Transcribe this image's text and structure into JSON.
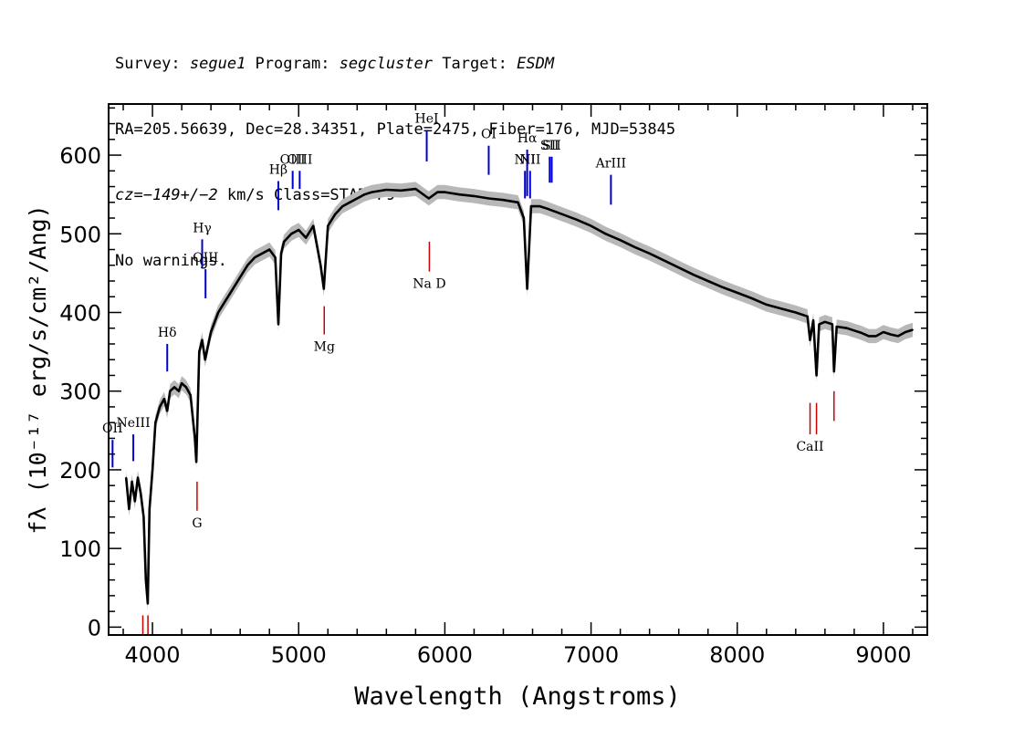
{
  "header": {
    "survey_label": "Survey: ",
    "survey": "segue1",
    "program_label": " Program: ",
    "program": "segcluster",
    "target_label": " Target: ",
    "target": "ESDM",
    "line2": "RA=205.56639, Dec=28.34351, Plate=2475, Fiber=176, MJD=53845",
    "cz_label": "cz=",
    "cz_value": "−149+/−2",
    "cz_rest": " km/s Class=STAR F9",
    "line4": "No warnings."
  },
  "colors": {
    "spectrum": "#000000",
    "error_band": "#b8b8b8",
    "emission_lines": "#0000cc",
    "absorption_lines": "#cc0000",
    "axes": "#000000"
  },
  "chart_data": {
    "type": "line",
    "title": "",
    "xlabel": "Wavelength (Angstroms)",
    "ylabel": "fλ (10⁻¹⁷ erg/s/cm²/Ang)",
    "xlim": [
      3700,
      9300
    ],
    "ylim": [
      -10,
      665
    ],
    "x_ticks": [
      4000,
      5000,
      6000,
      7000,
      8000,
      9000
    ],
    "y_ticks": [
      0,
      100,
      200,
      300,
      400,
      500,
      600
    ],
    "x_minor_step": 200,
    "y_minor_step": 20,
    "grid": false,
    "series": [
      {
        "x": [
          3820,
          3840,
          3860,
          3880,
          3900,
          3920,
          3940,
          3955,
          3968,
          3980,
          4000,
          4020,
          4050,
          4080,
          4101,
          4120,
          4150,
          4180,
          4200,
          4230,
          4260,
          4290,
          4300,
          4320,
          4340,
          4360,
          4400,
          4450,
          4500,
          4550,
          4600,
          4650,
          4700,
          4750,
          4800,
          4840,
          4861,
          4880,
          4900,
          4950,
          5000,
          5050,
          5100,
          5150,
          5172,
          5200,
          5250,
          5300,
          5350,
          5400,
          5450,
          5500,
          5600,
          5700,
          5800,
          5890,
          5950,
          6000,
          6100,
          6200,
          6300,
          6400,
          6500,
          6540,
          6563,
          6590,
          6650,
          6700,
          6800,
          6900,
          7000,
          7100,
          7200,
          7300,
          7400,
          7500,
          7600,
          7700,
          7800,
          7900,
          8000,
          8100,
          8200,
          8300,
          8400,
          8480,
          8498,
          8520,
          8542,
          8560,
          8600,
          8650,
          8662,
          8680,
          8750,
          8800,
          8850,
          8900,
          8950,
          9000,
          9050,
          9100,
          9150,
          9200
        ],
        "values": [
          190,
          150,
          185,
          160,
          190,
          170,
          140,
          60,
          30,
          150,
          200,
          260,
          280,
          290,
          275,
          300,
          305,
          300,
          310,
          305,
          295,
          240,
          210,
          350,
          365,
          340,
          375,
          400,
          415,
          430,
          445,
          460,
          470,
          475,
          480,
          470,
          385,
          475,
          490,
          500,
          505,
          495,
          510,
          460,
          430,
          510,
          525,
          535,
          540,
          545,
          550,
          553,
          556,
          555,
          557,
          545,
          553,
          553,
          550,
          548,
          545,
          543,
          540,
          520,
          430,
          535,
          535,
          532,
          525,
          518,
          510,
          500,
          492,
          483,
          475,
          466,
          457,
          448,
          440,
          432,
          425,
          418,
          410,
          405,
          400,
          395,
          365,
          390,
          320,
          385,
          388,
          385,
          325,
          382,
          380,
          377,
          374,
          370,
          370,
          375,
          372,
          370,
          375,
          378
        ],
        "error": 9
      }
    ],
    "line_markers": [
      {
        "label": "OII",
        "wavelength": 3727,
        "y0": 203,
        "y1": 238,
        "kind": "emission"
      },
      {
        "label": "NeIII",
        "wavelength": 3869,
        "y0": 211,
        "y1": 245,
        "kind": "emission"
      },
      {
        "label": "Hδ",
        "wavelength": 4101,
        "y0": 325,
        "y1": 360,
        "kind": "emission"
      },
      {
        "label": "Hγ",
        "wavelength": 4340,
        "y0": 457,
        "y1": 493,
        "kind": "emission"
      },
      {
        "label": "OIII",
        "wavelength": 4363,
        "y0": 418,
        "y1": 455,
        "kind": "emission"
      },
      {
        "label": "Hβ",
        "wavelength": 4861,
        "y0": 530,
        "y1": 567,
        "kind": "emission"
      },
      {
        "label": "OIII",
        "wavelength": 4959,
        "y0": 557,
        "y1": 580,
        "kind": "emission"
      },
      {
        "label": "OIII",
        "wavelength": 5007,
        "y0": 557,
        "y1": 580,
        "kind": "emission"
      },
      {
        "label": "HeI",
        "wavelength": 5876,
        "y0": 592,
        "y1": 632,
        "kind": "emission"
      },
      {
        "label": "OI",
        "wavelength": 6300,
        "y0": 575,
        "y1": 612,
        "kind": "emission"
      },
      {
        "label": "NII",
        "wavelength": 6548,
        "y0": 545,
        "y1": 580,
        "kind": "emission"
      },
      {
        "label": "Hα",
        "wavelength": 6563,
        "y0": 548,
        "y1": 607,
        "kind": "emission"
      },
      {
        "label": "NII",
        "wavelength": 6583,
        "y0": 545,
        "y1": 580,
        "kind": "emission"
      },
      {
        "label": "SII",
        "wavelength": 6717,
        "y0": 565,
        "y1": 598,
        "kind": "emission"
      },
      {
        "label": "SII",
        "wavelength": 6731,
        "y0": 565,
        "y1": 598,
        "kind": "emission"
      },
      {
        "label": "ArIII",
        "wavelength": 7136,
        "y0": 537,
        "y1": 575,
        "kind": "emission"
      },
      {
        "label": "",
        "wavelength": 3934,
        "y0": -10,
        "y1": 15,
        "kind": "absorption"
      },
      {
        "label": "",
        "wavelength": 3969,
        "y0": -10,
        "y1": 15,
        "kind": "absorption"
      },
      {
        "label": "G",
        "wavelength": 4305,
        "y0": 148,
        "y1": 185,
        "kind": "absorption"
      },
      {
        "label": "Mg",
        "wavelength": 5175,
        "y0": 372,
        "y1": 408,
        "kind": "absorption"
      },
      {
        "label": "Na D",
        "wavelength": 5894,
        "y0": 452,
        "y1": 490,
        "kind": "absorption"
      },
      {
        "label": "CaII",
        "wavelength": 8498,
        "y0": 245,
        "y1": 285,
        "kind": "absorption"
      },
      {
        "label": "",
        "wavelength": 8542,
        "y0": 245,
        "y1": 285,
        "kind": "absorption"
      },
      {
        "label": "",
        "wavelength": 8662,
        "y0": 262,
        "y1": 300,
        "kind": "absorption"
      }
    ]
  }
}
